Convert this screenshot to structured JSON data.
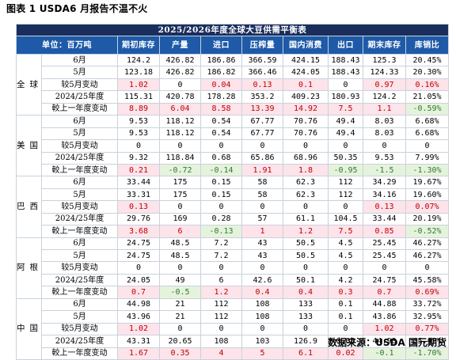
{
  "caption": "图表 1 USDA6 月报告不温不火",
  "table_title": "2025/2026年度全球大豆供需平衡表",
  "headers": [
    "单位：百万吨",
    "期初库存",
    "产量",
    "进口",
    "压榨量",
    "国内消费",
    "出口",
    "期末库存",
    "库销比"
  ],
  "regions": [
    {
      "name": "全球",
      "rows": [
        {
          "label": "6月",
          "values": [
            "124.2",
            "426.82",
            "186.86",
            "366.59",
            "424.15",
            "188.43",
            "125.3",
            "20.45%"
          ],
          "signs": [
            "",
            "",
            "",
            "",
            "",
            "",
            "",
            ""
          ]
        },
        {
          "label": "5月",
          "values": [
            "123.18",
            "426.82",
            "186.82",
            "366.46",
            "424.05",
            "188.43",
            "124.33",
            "20.30%"
          ],
          "signs": [
            "",
            "",
            "",
            "",
            "",
            "",
            "",
            ""
          ]
        },
        {
          "label": "较5月变动",
          "values": [
            "1.02",
            "0",
            "0.04",
            "0.13",
            "0.1",
            "0",
            "0.97",
            "0.16%"
          ],
          "signs": [
            "pos",
            "zero",
            "pos",
            "pos",
            "pos",
            "zero",
            "pos",
            "pos"
          ]
        },
        {
          "label": "2024/25年度",
          "values": [
            "115.31",
            "420.78",
            "178.28",
            "353.2",
            "409.23",
            "180.93",
            "124.2",
            "21.05%"
          ],
          "signs": [
            "",
            "",
            "",
            "",
            "",
            "",
            "",
            ""
          ]
        },
        {
          "label": "較上一年度变动",
          "values": [
            "8.89",
            "6.04",
            "8.58",
            "13.39",
            "14.92",
            "7.5",
            "1.1",
            "-0.59%"
          ],
          "signs": [
            "pos",
            "pos",
            "pos",
            "pos",
            "pos",
            "pos",
            "pos",
            "neg"
          ]
        }
      ]
    },
    {
      "name": "美国",
      "rows": [
        {
          "label": "6月",
          "values": [
            "9.53",
            "118.12",
            "0.54",
            "67.77",
            "70.76",
            "49.4",
            "8.03",
            "6.68%"
          ],
          "signs": [
            "",
            "",
            "",
            "",
            "",
            "",
            "",
            ""
          ]
        },
        {
          "label": "5月",
          "values": [
            "9.53",
            "118.12",
            "0.54",
            "67.77",
            "70.76",
            "49.4",
            "8.03",
            "6.68%"
          ],
          "signs": [
            "",
            "",
            "",
            "",
            "",
            "",
            "",
            ""
          ]
        },
        {
          "label": "较5月变动",
          "values": [
            "0",
            "0",
            "0",
            "0",
            "0",
            "0",
            "0",
            "0"
          ],
          "signs": [
            "zero",
            "zero",
            "zero",
            "zero",
            "zero",
            "zero",
            "zero",
            "zero"
          ]
        },
        {
          "label": "2024/25年度",
          "values": [
            "9.32",
            "118.84",
            "0.68",
            "65.86",
            "68.96",
            "50.35",
            "9.53",
            "7.99%"
          ],
          "signs": [
            "",
            "",
            "",
            "",
            "",
            "",
            "",
            ""
          ]
        },
        {
          "label": "較上一年度变动",
          "values": [
            "0.21",
            "-0.72",
            "-0.14",
            "1.91",
            "1.8",
            "-0.95",
            "-1.5",
            "-1.30%"
          ],
          "signs": [
            "pos",
            "neg",
            "neg",
            "pos",
            "pos",
            "neg",
            "neg",
            "neg"
          ]
        }
      ]
    },
    {
      "name": "巴西",
      "rows": [
        {
          "label": "6月",
          "values": [
            "33.44",
            "175",
            "0.15",
            "58",
            "62.3",
            "112",
            "34.29",
            "19.67%"
          ],
          "signs": [
            "",
            "",
            "",
            "",
            "",
            "",
            "",
            ""
          ]
        },
        {
          "label": "5月",
          "values": [
            "33.31",
            "175",
            "0.15",
            "58",
            "62.3",
            "112",
            "34.16",
            "19.60%"
          ],
          "signs": [
            "",
            "",
            "",
            "",
            "",
            "",
            "",
            ""
          ]
        },
        {
          "label": "较5月变动",
          "values": [
            "0.13",
            "0",
            "0",
            "0",
            "0",
            "0",
            "0.13",
            "0.07%"
          ],
          "signs": [
            "pos",
            "zero",
            "zero",
            "zero",
            "zero",
            "zero",
            "pos",
            "pos"
          ]
        },
        {
          "label": "2024/25年度",
          "values": [
            "29.76",
            "169",
            "0.28",
            "57",
            "61.1",
            "104.5",
            "33.44",
            "20.19%"
          ],
          "signs": [
            "",
            "",
            "",
            "",
            "",
            "",
            "",
            ""
          ]
        },
        {
          "label": "較上一年度变动",
          "values": [
            "3.68",
            "6",
            "-0.13",
            "1",
            "1.2",
            "7.5",
            "0.85",
            "-0.52%"
          ],
          "signs": [
            "pos",
            "pos",
            "neg",
            "pos",
            "pos",
            "pos",
            "pos",
            "neg"
          ]
        }
      ]
    },
    {
      "name": "阿根廷",
      "rows": [
        {
          "label": "6月",
          "values": [
            "24.75",
            "48.5",
            "7.2",
            "43",
            "50.5",
            "4.5",
            "25.45",
            "46.27%"
          ],
          "signs": [
            "",
            "",
            "",
            "",
            "",
            "",
            "",
            ""
          ]
        },
        {
          "label": "5月",
          "values": [
            "24.75",
            "48.5",
            "7.2",
            "43",
            "50.5",
            "4.5",
            "25.45",
            "46.27%"
          ],
          "signs": [
            "",
            "",
            "",
            "",
            "",
            "",
            "",
            ""
          ]
        },
        {
          "label": "较5月变动",
          "values": [
            "0",
            "0",
            "0",
            "0",
            "0",
            "0",
            "0",
            "0"
          ],
          "signs": [
            "zero",
            "zero",
            "zero",
            "zero",
            "zero",
            "zero",
            "zero",
            "zero"
          ]
        },
        {
          "label": "2024/25年度",
          "values": [
            "24.05",
            "49",
            "6",
            "42.6",
            "50.1",
            "4.2",
            "24.75",
            "45.58%"
          ],
          "signs": [
            "",
            "",
            "",
            "",
            "",
            "",
            "",
            ""
          ]
        },
        {
          "label": "較上一年度变动",
          "values": [
            "0.7",
            "-0.5",
            "1.2",
            "0.4",
            "0.4",
            "0.3",
            "0.7",
            "0.69%"
          ],
          "signs": [
            "pos",
            "neg",
            "pos",
            "pos",
            "pos",
            "pos",
            "pos",
            "pos"
          ]
        }
      ]
    },
    {
      "name": "中国",
      "rows": [
        {
          "label": "6月",
          "values": [
            "44.98",
            "21",
            "112",
            "108",
            "133",
            "0.1",
            "44.88",
            "33.72%"
          ],
          "signs": [
            "",
            "",
            "",
            "",
            "",
            "",
            "",
            ""
          ]
        },
        {
          "label": "5月",
          "values": [
            "43.96",
            "21",
            "112",
            "108",
            "133",
            "0.1",
            "43.86",
            "32.95%"
          ],
          "signs": [
            "",
            "",
            "",
            "",
            "",
            "",
            "",
            ""
          ]
        },
        {
          "label": "较5月变动",
          "values": [
            "1.02",
            "0",
            "0",
            "0",
            "0",
            "0",
            "1.02",
            "0.77%"
          ],
          "signs": [
            "pos",
            "zero",
            "zero",
            "zero",
            "zero",
            "zero",
            "pos",
            "pos"
          ]
        },
        {
          "label": "2024/25年度",
          "values": [
            "43.31",
            "20.65",
            "108",
            "103",
            "126.9",
            "0.08",
            "44.98",
            "35.42%"
          ],
          "signs": [
            "",
            "",
            "",
            "",
            "",
            "",
            "",
            ""
          ]
        },
        {
          "label": "較上一年度变动",
          "values": [
            "1.67",
            "0.35",
            "4",
            "5",
            "6.1",
            "0.02",
            "-0.1",
            "-1.70%"
          ],
          "signs": [
            "pos",
            "pos",
            "pos",
            "pos",
            "pos",
            "pos",
            "neg",
            "neg"
          ]
        }
      ]
    }
  ],
  "source": "数据来源：USDA 国元期货"
}
